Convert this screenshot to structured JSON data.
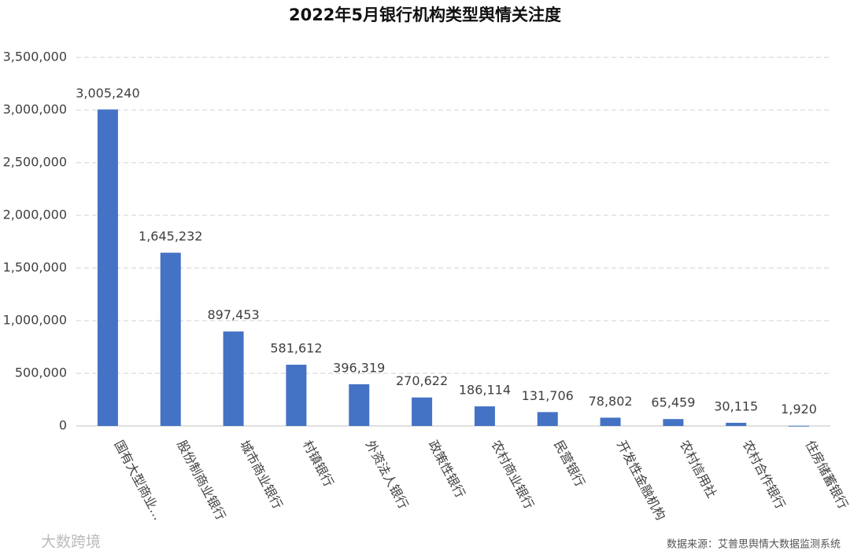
{
  "chart_data": {
    "type": "bar",
    "title": "2022年5月银行机构类型舆情关注度",
    "categories": [
      "国有大型商业…",
      "股份制商业银行",
      "城市商业银行",
      "村镇银行",
      "外资法人银行",
      "政策性银行",
      "农村商业银行",
      "民营银行",
      "开发性金融机构",
      "农村信用社",
      "农村合作银行",
      "住房储蓄银行"
    ],
    "values": [
      3005240,
      1645232,
      897453,
      581612,
      396319,
      270622,
      186114,
      131706,
      78802,
      65459,
      30115,
      1920
    ],
    "value_labels": [
      "3,005,240",
      "1,645,232",
      "897,453",
      "581,612",
      "396,319",
      "270,622",
      "186,114",
      "131,706",
      "78,802",
      "65,459",
      "30,115",
      "1,920"
    ],
    "color": "#4472c4",
    "ylim": [
      0,
      3500000
    ],
    "yticks": [
      0,
      {
        "value": 500000,
        "label": "500,000"
      },
      {
        "value": 1000000,
        "label": "1,000,000"
      },
      {
        "value": 1500000,
        "label": "1,500,000"
      },
      {
        "value": 2000000,
        "label": "2,000,000"
      },
      {
        "value": 2500000,
        "label": "2,500,000"
      },
      {
        "value": 3000000,
        "label": "3,000,000"
      },
      {
        "value": 3500000,
        "label": "3,500,000"
      }
    ],
    "grid": true,
    "source": "数据来源：艾普思舆情大数据监测系统",
    "logo": "大数跨境"
  }
}
